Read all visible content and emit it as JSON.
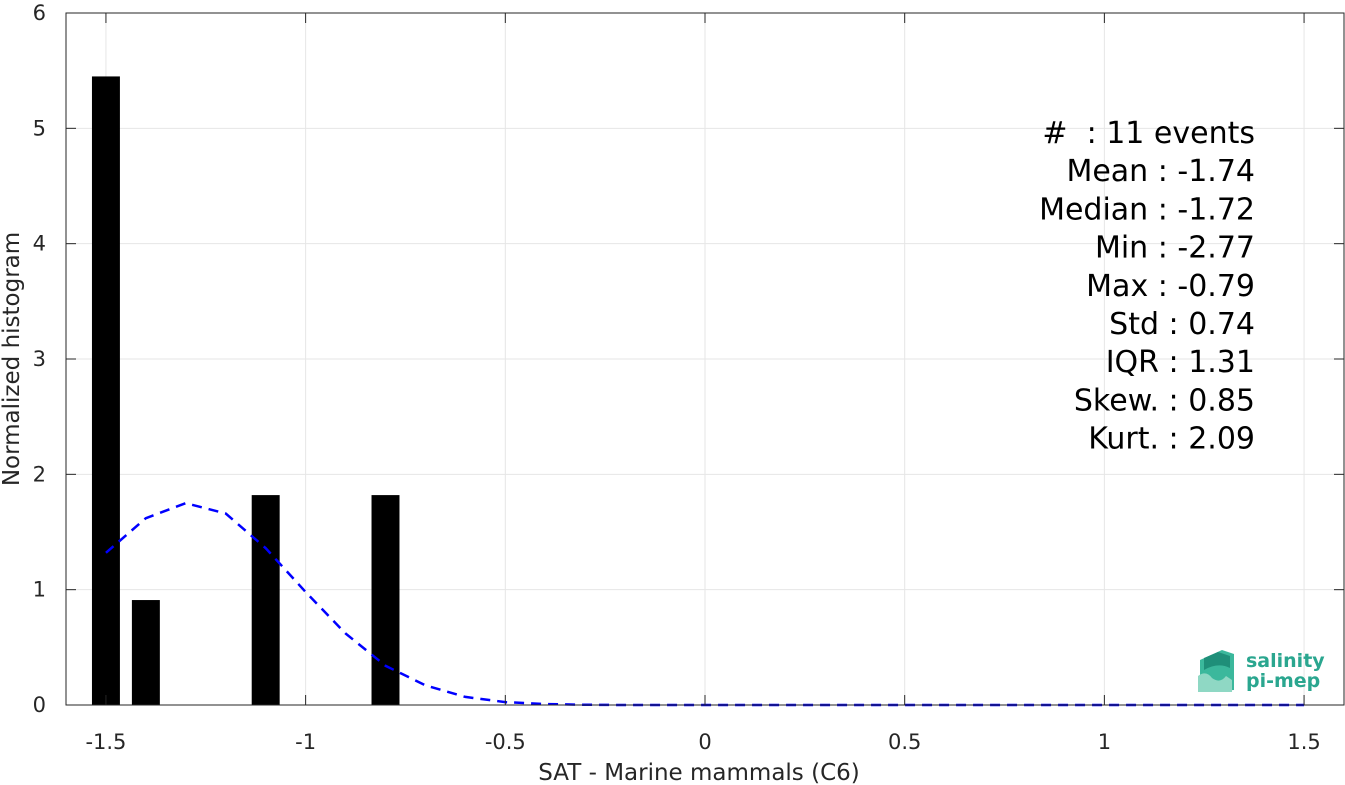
{
  "chart_data": {
    "type": "bar",
    "xlabel": "SAT - Marine mammals (C6)",
    "ylabel": "Normalized histogram",
    "xlim": [
      -1.6,
      1.6
    ],
    "ylim": [
      0,
      6
    ],
    "xticks": [
      -1.5,
      -1,
      -0.5,
      0,
      0.5,
      1,
      1.5
    ],
    "xtick_labels": [
      "-1.5",
      "-1",
      "-0.5",
      "0",
      "0.5",
      "1",
      "1.5"
    ],
    "yticks": [
      0,
      1,
      2,
      3,
      4,
      5,
      6
    ],
    "ytick_labels": [
      "0",
      "1",
      "2",
      "3",
      "4",
      "5",
      "6"
    ],
    "grid": true,
    "bar_width": 0.07,
    "bars": [
      {
        "x": -1.5,
        "value": 5.45
      },
      {
        "x": -1.4,
        "value": 0.91
      },
      {
        "x": -1.1,
        "value": 1.82
      },
      {
        "x": -0.8,
        "value": 1.82
      }
    ],
    "fit_curve": {
      "style": "dashed",
      "color": "#0000ff",
      "x": [
        -1.5,
        -1.4,
        -1.3,
        -1.2,
        -1.1,
        -1.0,
        -0.9,
        -0.8,
        -0.7,
        -0.6,
        -0.5,
        -0.4,
        -0.3,
        -0.2,
        0.0,
        0.5,
        1.0,
        1.5
      ],
      "y": [
        1.32,
        1.62,
        1.75,
        1.66,
        1.36,
        0.98,
        0.62,
        0.34,
        0.17,
        0.07,
        0.025,
        0.008,
        0.002,
        0.0,
        0.0,
        0.0,
        0.0,
        0.0
      ]
    },
    "bar_color": "#000000",
    "stats": [
      "#  : 11 events",
      "Mean : -1.74",
      "Median : -1.72",
      "Min : -2.77",
      "Max : -0.79",
      "Std : 0.74",
      "IQR : 1.31",
      "Skew. : 0.85",
      "Kurt. : 2.09"
    ]
  },
  "logo": {
    "line1": "salinity",
    "line2": "pi-mep",
    "color": "#2aa68f"
  }
}
